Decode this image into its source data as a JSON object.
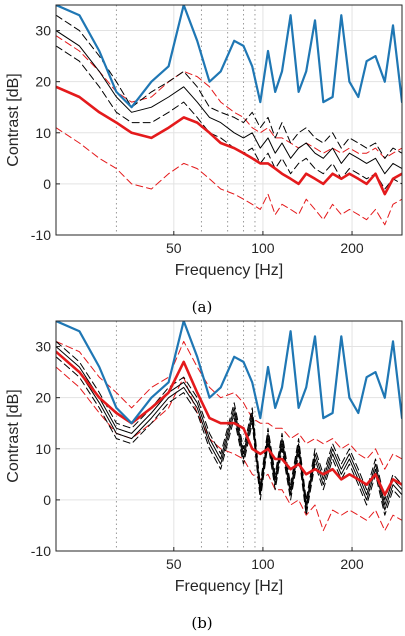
{
  "chart_data": [
    {
      "panel": "(a)",
      "type": "line",
      "xlabel": "Frequency [Hz]",
      "ylabel": "Contrast [dB]",
      "xscale": "log",
      "xlim": [
        20,
        295
      ],
      "ylim": [
        -10,
        35
      ],
      "xticks": [
        50,
        100,
        200
      ],
      "yticks": [
        -10,
        0,
        10,
        20,
        30
      ],
      "grid": true,
      "reference_lines_x": [
        32,
        62,
        76,
        86,
        94
      ],
      "colors": {
        "blue": "#1f77b4",
        "red": "#e41a1c",
        "black": "#000000"
      },
      "series": [
        {
          "style": "blue",
          "x": [
            20,
            24,
            28,
            32,
            36,
            42,
            48,
            54,
            60,
            66,
            72,
            80,
            86,
            92,
            98,
            104,
            110,
            116,
            124,
            132,
            140,
            150,
            160,
            172,
            184,
            196,
            210,
            224,
            240,
            258,
            275,
            295
          ],
          "y": [
            35,
            33,
            26,
            18,
            15,
            20,
            23,
            35,
            28,
            20,
            22,
            28,
            27,
            23,
            16,
            26,
            18,
            22,
            33,
            18,
            22,
            32,
            16,
            17,
            33,
            20,
            17,
            24,
            25,
            20,
            31,
            16
          ]
        },
        {
          "style": "red_thick",
          "x": [
            20,
            24,
            28,
            32,
            36,
            42,
            48,
            54,
            60,
            66,
            72,
            80,
            86,
            92,
            98,
            104,
            110,
            116,
            124,
            132,
            140,
            150,
            160,
            172,
            184,
            196,
            210,
            224,
            240,
            258,
            275,
            295
          ],
          "y": [
            19,
            17,
            14,
            12,
            10,
            9,
            11,
            13,
            12,
            10,
            8,
            7,
            6,
            5,
            4,
            4,
            3,
            2,
            1,
            0,
            2,
            1,
            0,
            2,
            1,
            2,
            1,
            0,
            2,
            -2,
            1,
            2
          ]
        },
        {
          "style": "red_dashed",
          "x": [
            20,
            24,
            28,
            32,
            36,
            42,
            48,
            54,
            60,
            66,
            72,
            80,
            86,
            92,
            98,
            104,
            110,
            116,
            124,
            132,
            140,
            150,
            160,
            172,
            184,
            196,
            210,
            224,
            240,
            258,
            275,
            295
          ],
          "y": [
            11,
            8,
            5,
            3,
            0,
            -1,
            2,
            4,
            3,
            1,
            -1,
            -2,
            -3,
            -4,
            -5,
            -2,
            -6,
            -4,
            -5,
            -6,
            -3,
            -5,
            -7,
            -4,
            -6,
            -5,
            -6,
            -7,
            -5,
            -8,
            -4,
            -3
          ]
        },
        {
          "style": "red_dashed",
          "x": [
            20,
            24,
            28,
            32,
            36,
            42,
            48,
            54,
            60,
            66,
            72,
            80,
            86,
            92,
            98,
            104,
            110,
            116,
            124,
            132,
            140,
            150,
            160,
            172,
            184,
            196,
            210,
            224,
            240,
            258,
            275,
            295
          ],
          "y": [
            29,
            26,
            22,
            18,
            16,
            17,
            20,
            22,
            21,
            19,
            16,
            14,
            13,
            11,
            10,
            11,
            9,
            9,
            8,
            7,
            8,
            7,
            6,
            7,
            6,
            7,
            6,
            6,
            7,
            5,
            6,
            7
          ]
        },
        {
          "style": "black_dashed",
          "x": [
            20,
            24,
            28,
            32,
            36,
            42,
            48,
            54,
            60,
            66,
            72,
            80,
            86,
            92,
            98,
            104,
            110,
            116,
            124,
            132,
            140,
            150,
            160,
            172,
            184,
            196,
            210,
            224,
            240,
            258,
            275,
            295
          ],
          "y": [
            33,
            30,
            25,
            20,
            15,
            18,
            20,
            22,
            19,
            15,
            14,
            13,
            12,
            14,
            11,
            13,
            9,
            12,
            8,
            10,
            11,
            9,
            8,
            10,
            7,
            9,
            8,
            7,
            8,
            5,
            7,
            6
          ]
        },
        {
          "style": "black_solid",
          "x": [
            20,
            24,
            28,
            32,
            36,
            42,
            48,
            54,
            60,
            66,
            72,
            80,
            86,
            92,
            98,
            104,
            110,
            116,
            124,
            132,
            140,
            150,
            160,
            172,
            184,
            196,
            210,
            224,
            240,
            258,
            275,
            295
          ],
          "y": [
            30,
            27,
            22,
            17,
            14,
            15,
            17,
            19,
            16,
            13,
            12,
            10,
            9,
            10,
            7,
            9,
            6,
            8,
            5,
            7,
            8,
            6,
            5,
            7,
            4,
            6,
            5,
            4,
            5,
            2,
            4,
            3
          ]
        },
        {
          "style": "black_dashed",
          "x": [
            20,
            24,
            28,
            32,
            36,
            42,
            48,
            54,
            60,
            66,
            72,
            80,
            86,
            92,
            98,
            104,
            110,
            116,
            124,
            132,
            140,
            150,
            160,
            172,
            184,
            196,
            210,
            224,
            240,
            258,
            275,
            295
          ],
          "y": [
            27,
            24,
            19,
            14,
            12,
            12,
            14,
            16,
            13,
            10,
            9,
            7,
            6,
            7,
            4,
            6,
            3,
            5,
            2,
            4,
            5,
            3,
            2,
            4,
            1,
            3,
            2,
            1,
            2,
            -1,
            1,
            0
          ]
        }
      ]
    },
    {
      "panel": "(b)",
      "type": "line",
      "xlabel": "Frequency [Hz]",
      "ylabel": "Contrast [dB]",
      "xscale": "log",
      "xlim": [
        20,
        295
      ],
      "ylim": [
        -10,
        35
      ],
      "xticks": [
        50,
        100,
        200
      ],
      "yticks": [
        -10,
        0,
        10,
        20,
        30
      ],
      "grid": true,
      "reference_lines_x": [
        32,
        62,
        76,
        86,
        94
      ],
      "colors": {
        "blue": "#1f77b4",
        "red": "#e41a1c",
        "black": "#000000"
      },
      "series": [
        {
          "style": "blue",
          "x": [
            20,
            24,
            28,
            32,
            36,
            42,
            48,
            54,
            60,
            66,
            72,
            80,
            86,
            92,
            98,
            104,
            110,
            116,
            124,
            132,
            140,
            150,
            160,
            172,
            184,
            196,
            210,
            224,
            240,
            258,
            275,
            295
          ],
          "y": [
            35,
            33,
            26,
            18,
            15,
            20,
            23,
            35,
            28,
            20,
            22,
            28,
            27,
            23,
            16,
            26,
            18,
            22,
            33,
            18,
            22,
            32,
            16,
            17,
            32,
            20,
            17,
            24,
            25,
            20,
            31,
            16
          ]
        },
        {
          "style": "red_thick",
          "x": [
            20,
            24,
            28,
            32,
            36,
            42,
            48,
            54,
            60,
            66,
            72,
            80,
            86,
            92,
            98,
            104,
            110,
            116,
            124,
            132,
            140,
            150,
            160,
            172,
            184,
            196,
            210,
            224,
            240,
            258,
            275,
            295
          ],
          "y": [
            29,
            25,
            20,
            17,
            15,
            18,
            21,
            27,
            21,
            16,
            15,
            15,
            14,
            10,
            9,
            10,
            8,
            8,
            6,
            7,
            5,
            6,
            5,
            6,
            4,
            5,
            4,
            3,
            5,
            1,
            4,
            3
          ]
        },
        {
          "style": "red_dashed",
          "x": [
            20,
            24,
            28,
            32,
            36,
            42,
            48,
            54,
            60,
            66,
            72,
            80,
            86,
            92,
            98,
            104,
            110,
            116,
            124,
            132,
            140,
            150,
            160,
            172,
            184,
            196,
            210,
            224,
            240,
            258,
            275,
            295
          ],
          "y": [
            26,
            22,
            17,
            13,
            12,
            15,
            18,
            24,
            17,
            12,
            10,
            9,
            8,
            5,
            4,
            5,
            2,
            2,
            -1,
            0,
            -3,
            -1,
            -6,
            -2,
            -3,
            -2,
            -3,
            -4,
            -2,
            -6,
            -3,
            -4
          ]
        },
        {
          "style": "red_dashed",
          "x": [
            20,
            24,
            28,
            32,
            36,
            42,
            48,
            54,
            60,
            66,
            72,
            80,
            86,
            92,
            98,
            104,
            110,
            116,
            124,
            132,
            140,
            150,
            160,
            172,
            184,
            196,
            210,
            224,
            240,
            258,
            275,
            295
          ],
          "y": [
            31,
            29,
            24,
            21,
            18,
            22,
            24,
            31,
            26,
            22,
            20,
            21,
            19,
            16,
            15,
            15,
            14,
            14,
            12,
            13,
            11,
            12,
            11,
            12,
            10,
            11,
            9,
            8,
            10,
            6,
            9,
            8
          ]
        },
        {
          "style": "black_solid",
          "x": [
            20,
            24,
            28,
            32,
            36,
            42,
            48,
            54,
            60,
            66,
            72,
            80,
            86,
            92,
            98,
            104,
            110,
            116,
            124,
            132,
            140,
            150,
            160,
            172,
            184,
            196,
            210,
            224,
            240,
            258,
            275,
            295
          ],
          "y": [
            30,
            26,
            20,
            14,
            13,
            17,
            21,
            23,
            19,
            12,
            8,
            18,
            9,
            17,
            2,
            13,
            4,
            12,
            2,
            11,
            -1,
            9,
            4,
            10,
            6,
            9,
            5,
            1,
            7,
            -1,
            4,
            2
          ]
        },
        {
          "style": "black_solid",
          "x": [
            20,
            24,
            28,
            32,
            36,
            42,
            48,
            54,
            60,
            66,
            72,
            80,
            86,
            92,
            98,
            104,
            110,
            116,
            124,
            132,
            140,
            150,
            160,
            172,
            184,
            196,
            210,
            224,
            240,
            258,
            275,
            295
          ],
          "y": [
            29,
            25,
            19,
            13,
            12,
            16,
            20,
            22,
            18,
            11,
            7,
            17,
            8,
            16,
            1,
            12,
            3,
            11,
            1,
            10,
            -2,
            8,
            3,
            9,
            5,
            8,
            4,
            0,
            6,
            -2,
            3,
            1
          ]
        },
        {
          "style": "black_dashed",
          "x": [
            20,
            24,
            28,
            32,
            36,
            42,
            48,
            54,
            60,
            66,
            72,
            80,
            86,
            92,
            98,
            104,
            110,
            116,
            124,
            132,
            140,
            150,
            160,
            172,
            184,
            196,
            210,
            224,
            240,
            258,
            275,
            295
          ],
          "y": [
            31,
            27,
            21,
            15,
            14,
            18,
            22,
            24,
            20,
            13,
            9,
            19,
            10,
            18,
            3,
            14,
            5,
            13,
            3,
            12,
            0,
            10,
            5,
            11,
            7,
            10,
            6,
            2,
            8,
            0,
            5,
            3
          ]
        },
        {
          "style": "black_dashed",
          "x": [
            20,
            24,
            28,
            32,
            36,
            42,
            48,
            54,
            60,
            66,
            72,
            80,
            86,
            92,
            98,
            104,
            110,
            116,
            124,
            132,
            140,
            150,
            160,
            172,
            184,
            196,
            210,
            224,
            240,
            258,
            275,
            295
          ],
          "y": [
            28,
            24,
            18,
            12,
            11,
            15,
            19,
            21,
            17,
            10,
            6,
            16,
            7,
            15,
            0,
            11,
            2,
            10,
            0,
            9,
            -3,
            7,
            2,
            8,
            4,
            7,
            3,
            -1,
            5,
            -3,
            2,
            0
          ]
        }
      ]
    }
  ],
  "captions": [
    "(a)",
    "(b)"
  ]
}
